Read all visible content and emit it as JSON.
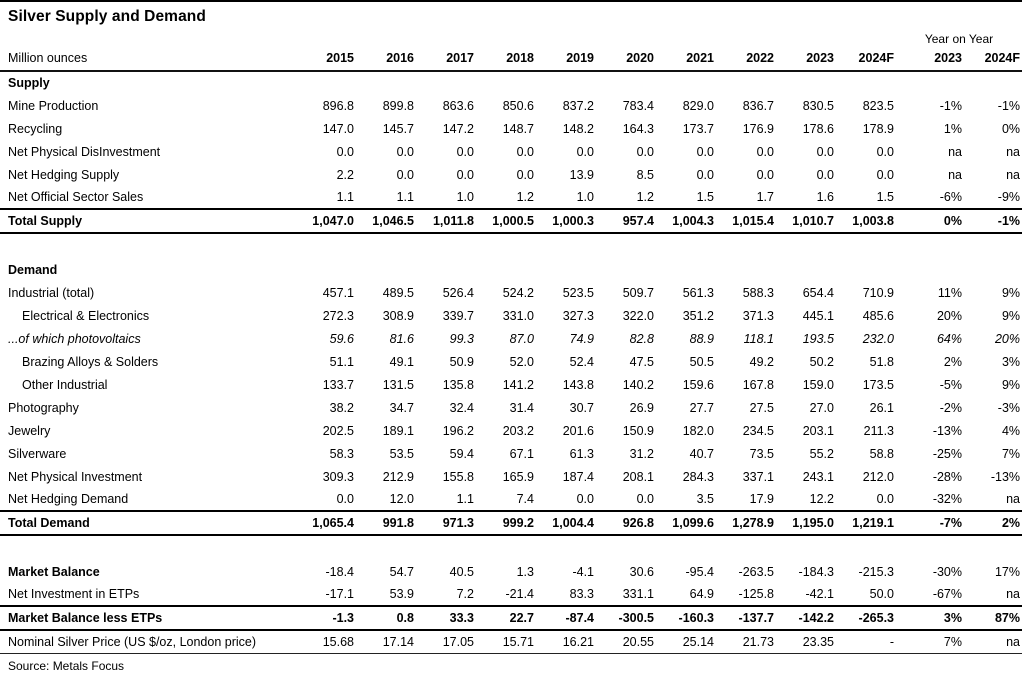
{
  "title": "Silver Supply and Demand",
  "source": "Source: Metals Focus",
  "colors": {
    "text": "#000000",
    "rules": "#000000",
    "background": "#ffffff"
  },
  "chart_data": {
    "type": "table",
    "title": "Silver Supply and Demand",
    "unit_label": "Million ounces",
    "year_on_year_label": "Year on Year",
    "columns": [
      "2015",
      "2016",
      "2017",
      "2018",
      "2019",
      "2020",
      "2021",
      "2022",
      "2023",
      "2024F"
    ],
    "yoy_columns": [
      "2023",
      "2024F"
    ],
    "rows": [
      {
        "label": "Supply",
        "section": true
      },
      {
        "label": "Mine Production",
        "values": [
          "896.8",
          "899.8",
          "863.6",
          "850.6",
          "837.2",
          "783.4",
          "829.0",
          "836.7",
          "830.5",
          "823.5"
        ],
        "yoy": [
          "-1%",
          "-1%"
        ]
      },
      {
        "label": "Recycling",
        "values": [
          "147.0",
          "145.7",
          "147.2",
          "148.7",
          "148.2",
          "164.3",
          "173.7",
          "176.9",
          "178.6",
          "178.9"
        ],
        "yoy": [
          "1%",
          "0%"
        ]
      },
      {
        "label": "Net Physical DisInvestment",
        "values": [
          "0.0",
          "0.0",
          "0.0",
          "0.0",
          "0.0",
          "0.0",
          "0.0",
          "0.0",
          "0.0",
          "0.0"
        ],
        "yoy": [
          "na",
          "na"
        ]
      },
      {
        "label": "Net Hedging Supply",
        "values": [
          "2.2",
          "0.0",
          "0.0",
          "0.0",
          "13.9",
          "8.5",
          "0.0",
          "0.0",
          "0.0",
          "0.0"
        ],
        "yoy": [
          "na",
          "na"
        ]
      },
      {
        "label": "Net Official Sector Sales",
        "values": [
          "1.1",
          "1.1",
          "1.0",
          "1.2",
          "1.0",
          "1.2",
          "1.5",
          "1.7",
          "1.6",
          "1.5"
        ],
        "yoy": [
          "-6%",
          "-9%"
        ]
      },
      {
        "label": "Total Supply",
        "total": true,
        "values": [
          "1,047.0",
          "1,046.5",
          "1,011.8",
          "1,000.5",
          "1,000.3",
          "957.4",
          "1,004.3",
          "1,015.4",
          "1,010.7",
          "1,003.8"
        ],
        "yoy": [
          "0%",
          "-1%"
        ]
      },
      {
        "spacer": true
      },
      {
        "label": "Demand",
        "section": true
      },
      {
        "label": "Industrial (total)",
        "values": [
          "457.1",
          "489.5",
          "526.4",
          "524.2",
          "523.5",
          "509.7",
          "561.3",
          "588.3",
          "654.4",
          "710.9"
        ],
        "yoy": [
          "11%",
          "9%"
        ]
      },
      {
        "label": "Electrical & Electronics",
        "indent": true,
        "values": [
          "272.3",
          "308.9",
          "339.7",
          "331.0",
          "327.3",
          "322.0",
          "351.2",
          "371.3",
          "445.1",
          "485.6"
        ],
        "yoy": [
          "20%",
          "9%"
        ]
      },
      {
        "label": "...of which photovoltaics",
        "italic": true,
        "values": [
          "59.6",
          "81.6",
          "99.3",
          "87.0",
          "74.9",
          "82.8",
          "88.9",
          "118.1",
          "193.5",
          "232.0"
        ],
        "yoy": [
          "64%",
          "20%"
        ]
      },
      {
        "label": "Brazing Alloys & Solders",
        "indent": true,
        "values": [
          "51.1",
          "49.1",
          "50.9",
          "52.0",
          "52.4",
          "47.5",
          "50.5",
          "49.2",
          "50.2",
          "51.8"
        ],
        "yoy": [
          "2%",
          "3%"
        ]
      },
      {
        "label": "Other Industrial",
        "indent": true,
        "values": [
          "133.7",
          "131.5",
          "135.8",
          "141.2",
          "143.8",
          "140.2",
          "159.6",
          "167.8",
          "159.0",
          "173.5"
        ],
        "yoy": [
          "-5%",
          "9%"
        ]
      },
      {
        "label": "Photography",
        "values": [
          "38.2",
          "34.7",
          "32.4",
          "31.4",
          "30.7",
          "26.9",
          "27.7",
          "27.5",
          "27.0",
          "26.1"
        ],
        "yoy": [
          "-2%",
          "-3%"
        ]
      },
      {
        "label": "Jewelry",
        "values": [
          "202.5",
          "189.1",
          "196.2",
          "203.2",
          "201.6",
          "150.9",
          "182.0",
          "234.5",
          "203.1",
          "211.3"
        ],
        "yoy": [
          "-13%",
          "4%"
        ]
      },
      {
        "label": "Silverware",
        "values": [
          "58.3",
          "53.5",
          "59.4",
          "67.1",
          "61.3",
          "31.2",
          "40.7",
          "73.5",
          "55.2",
          "58.8"
        ],
        "yoy": [
          "-25%",
          "7%"
        ]
      },
      {
        "label": "Net Physical Investment",
        "values": [
          "309.3",
          "212.9",
          "155.8",
          "165.9",
          "187.4",
          "208.1",
          "284.3",
          "337.1",
          "243.1",
          "212.0"
        ],
        "yoy": [
          "-28%",
          "-13%"
        ]
      },
      {
        "label": "Net Hedging Demand",
        "values": [
          "0.0",
          "12.0",
          "1.1",
          "7.4",
          "0.0",
          "0.0",
          "3.5",
          "17.9",
          "12.2",
          "0.0"
        ],
        "yoy": [
          "-32%",
          "na"
        ]
      },
      {
        "label": "Total Demand",
        "total": true,
        "values": [
          "1,065.4",
          "991.8",
          "971.3",
          "999.2",
          "1,004.4",
          "926.8",
          "1,099.6",
          "1,278.9",
          "1,195.0",
          "1,219.1"
        ],
        "yoy": [
          "-7%",
          "2%"
        ]
      },
      {
        "spacer": true
      },
      {
        "label": "Market Balance",
        "bold_label": true,
        "values": [
          "-18.4",
          "54.7",
          "40.5",
          "1.3",
          "-4.1",
          "30.6",
          "-95.4",
          "-263.5",
          "-184.3",
          "-215.3"
        ],
        "yoy": [
          "-30%",
          "17%"
        ]
      },
      {
        "label": "Net Investment in ETPs",
        "values": [
          "-17.1",
          "53.9",
          "7.2",
          "-21.4",
          "83.3",
          "331.1",
          "64.9",
          "-125.8",
          "-42.1",
          "50.0"
        ],
        "yoy": [
          "-67%",
          "na"
        ]
      },
      {
        "label": "Market Balance less ETPs",
        "total": true,
        "values": [
          "-1.3",
          "0.8",
          "33.3",
          "22.7",
          "-87.4",
          "-300.5",
          "-160.3",
          "-137.7",
          "-142.2",
          "-265.3"
        ],
        "yoy": [
          "3%",
          "87%"
        ]
      },
      {
        "label": "Nominal Silver Price (US $/oz, London price)",
        "underline": true,
        "values": [
          "15.68",
          "17.14",
          "17.05",
          "15.71",
          "16.21",
          "20.55",
          "25.14",
          "21.73",
          "23.35",
          "-"
        ],
        "yoy": [
          "7%",
          "na"
        ]
      }
    ],
    "source": "Source: Metals Focus"
  }
}
